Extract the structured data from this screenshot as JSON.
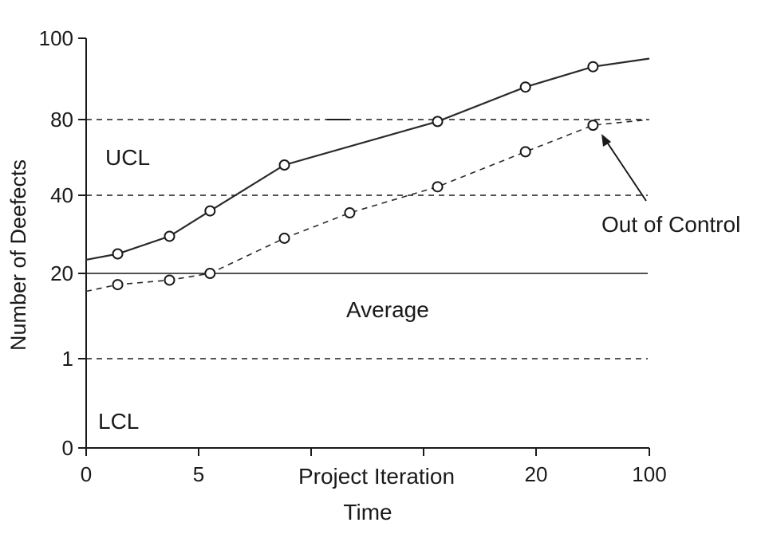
{
  "chart_data": {
    "type": "line",
    "title": "",
    "xlabel": "Project Iteration",
    "xlabel2": "Time",
    "ylabel": "Number of Deefects",
    "x_ticks": [
      "0",
      "5",
      "",
      "",
      "20",
      "100"
    ],
    "y_ticks": [
      "0",
      "1",
      "20",
      "40",
      "80",
      "100"
    ],
    "grid": false,
    "legend": "none",
    "reference_lines": [
      {
        "label": "UCL",
        "level": "80",
        "style": "dashed"
      },
      {
        "label": "",
        "level": "40",
        "style": "dashed"
      },
      {
        "label": "Average",
        "level": "20",
        "style": "solid"
      },
      {
        "label": "LCL",
        "level": "1",
        "style": "dashed"
      }
    ],
    "series": [
      {
        "style": "solid",
        "line_start": [
          0,
          23.5
        ],
        "line_end": [
          25,
          95
        ],
        "points": [
          [
            1.4,
            25
          ],
          [
            3.7,
            29.5
          ],
          [
            5.5,
            36
          ],
          [
            8.8,
            56
          ],
          [
            15.6,
            79
          ],
          [
            19.5,
            88
          ],
          [
            22.5,
            93
          ]
        ]
      },
      {
        "style": "dashed",
        "line_start": [
          0,
          16
        ],
        "line_end": [
          25,
          80
        ],
        "points": [
          [
            1.4,
            17.5
          ],
          [
            3.7,
            18.5
          ],
          [
            5.5,
            20
          ],
          [
            8.8,
            29
          ],
          [
            11.7,
            35.5
          ],
          [
            15.6,
            44.5
          ],
          [
            19.5,
            63
          ],
          [
            22.5,
            77
          ]
        ]
      }
    ],
    "annotations": {
      "ucl": "UCL",
      "lcl": "LCL",
      "average": "Average",
      "out_of_control": "Out of Control"
    }
  }
}
